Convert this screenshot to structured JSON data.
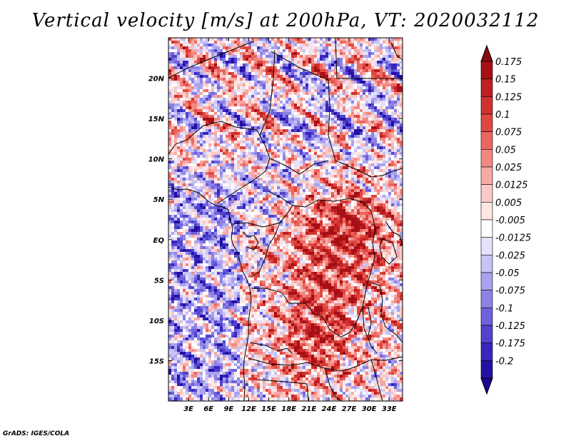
{
  "title": "Vertical velocity [m/s] at 200hPa, VT: 2020032112",
  "credit": "GrADS: IGES/COLA",
  "map": {
    "lon_range": [
      0,
      35
    ],
    "lat_range": [
      -20,
      25
    ],
    "lon_ticks": [
      {
        "lon": 3,
        "label": "3E"
      },
      {
        "lon": 6,
        "label": "6E"
      },
      {
        "lon": 9,
        "label": "9E"
      },
      {
        "lon": 12,
        "label": "12E"
      },
      {
        "lon": 15,
        "label": "15E"
      },
      {
        "lon": 18,
        "label": "18E"
      },
      {
        "lon": 21,
        "label": "21E"
      },
      {
        "lon": 24,
        "label": "24E"
      },
      {
        "lon": 27,
        "label": "27E"
      },
      {
        "lon": 30,
        "label": "30E"
      },
      {
        "lon": 33,
        "label": "33E"
      }
    ],
    "lat_ticks": [
      {
        "lat": 20,
        "label": "20N"
      },
      {
        "lat": 15,
        "label": "15N"
      },
      {
        "lat": 10,
        "label": "10N"
      },
      {
        "lat": 5,
        "label": "5N"
      },
      {
        "lat": 0,
        "label": "EQ"
      },
      {
        "lat": -5,
        "label": "5S"
      },
      {
        "lat": -10,
        "label": "10S"
      },
      {
        "lat": -15,
        "label": "15S"
      }
    ]
  },
  "colorbar": {
    "levels": [
      {
        "label": "0.175",
        "color": "#a50f15"
      },
      {
        "label": "0.15",
        "color": "#bd1f22"
      },
      {
        "label": "0.125",
        "color": "#d2312e"
      },
      {
        "label": "0.1",
        "color": "#e0473f"
      },
      {
        "label": "0.075",
        "color": "#eb6660"
      },
      {
        "label": "0.05",
        "color": "#f28882"
      },
      {
        "label": "0.025",
        "color": "#f7a9a4"
      },
      {
        "label": "0.0125",
        "color": "#fbc9c6"
      },
      {
        "label": "0.005",
        "color": "#fde6e4"
      },
      {
        "label": "-0.005",
        "color": "#ffffff"
      },
      {
        "label": "-0.0125",
        "color": "#e4e2fb"
      },
      {
        "label": "-0.025",
        "color": "#c8c3f5"
      },
      {
        "label": "-0.05",
        "color": "#aaa2ee"
      },
      {
        "label": "-0.075",
        "color": "#8c82e6"
      },
      {
        "label": "-0.1",
        "color": "#6d61dc"
      },
      {
        "label": "-0.125",
        "color": "#5143ce"
      },
      {
        "label": "-0.175",
        "color": "#3726bc"
      },
      {
        "label": "-0.2",
        "color": "#2410a4"
      }
    ],
    "top_color": "#8b0a10",
    "bottom_color": "#1e0590"
  }
}
